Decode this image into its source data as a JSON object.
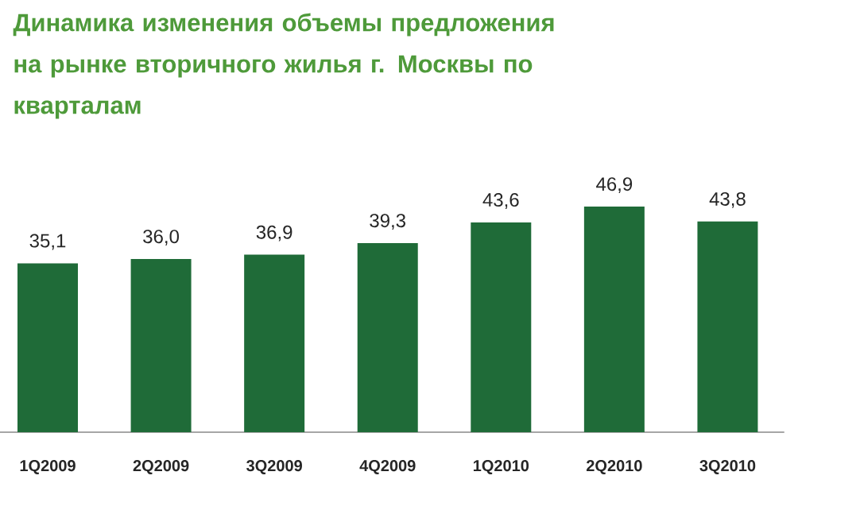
{
  "chart_data": {
    "type": "bar",
    "title": "Динамика изменения объемы предложения на рынке вторичного жилья г. Москвы по кварталам",
    "categories": [
      "1Q2009",
      "2Q2009",
      "3Q2009",
      "4Q2009",
      "1Q2010",
      "2Q2010",
      "3Q2010"
    ],
    "values": [
      35.1,
      36.0,
      36.9,
      39.3,
      43.6,
      46.9,
      43.8
    ],
    "value_labels": [
      "35,1",
      "36,0",
      "36,9",
      "39,3",
      "43,6",
      "46,9",
      "43,8"
    ],
    "color": "#1f6b38"
  }
}
